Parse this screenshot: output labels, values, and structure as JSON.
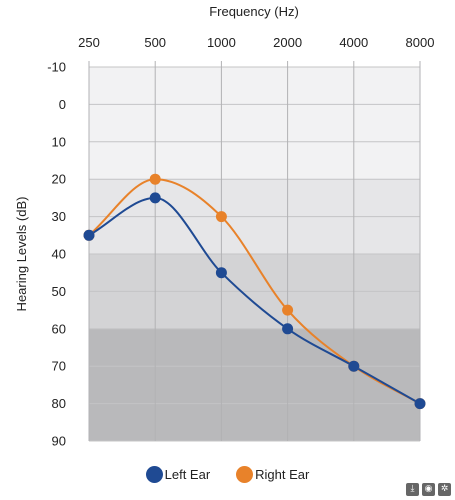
{
  "chart_data": {
    "type": "line",
    "title": "Frequency (Hz)",
    "xlabel": "Frequency (Hz)",
    "ylabel": "Hearing Levels (dB)",
    "categories": [
      "250",
      "500",
      "1000",
      "2000",
      "4000",
      "8000"
    ],
    "y_ticks": [
      -10,
      0,
      10,
      20,
      30,
      40,
      50,
      60,
      70,
      80,
      90
    ],
    "ylim": [
      -10,
      90
    ],
    "y_inverted": true,
    "x_axis_position": "top",
    "grid": true,
    "legend_position": "bottom-center",
    "bands": [
      {
        "from": -10,
        "to": 20,
        "color": "#f2f2f3"
      },
      {
        "from": 20,
        "to": 40,
        "color": "#e6e6e8"
      },
      {
        "from": 40,
        "to": 60,
        "color": "#d3d3d5"
      },
      {
        "from": 60,
        "to": 90,
        "color": "#b9b9bb"
      }
    ],
    "series": [
      {
        "name": "Left Ear",
        "color": "#1f4a93",
        "values": [
          35,
          25,
          45,
          60,
          70,
          80
        ]
      },
      {
        "name": "Right Ear",
        "color": "#e8822a",
        "values": [
          35,
          20,
          30,
          55,
          70,
          80
        ]
      }
    ]
  },
  "toolbar": {
    "icons": [
      "download-icon",
      "camera-icon",
      "settings-icon"
    ]
  }
}
